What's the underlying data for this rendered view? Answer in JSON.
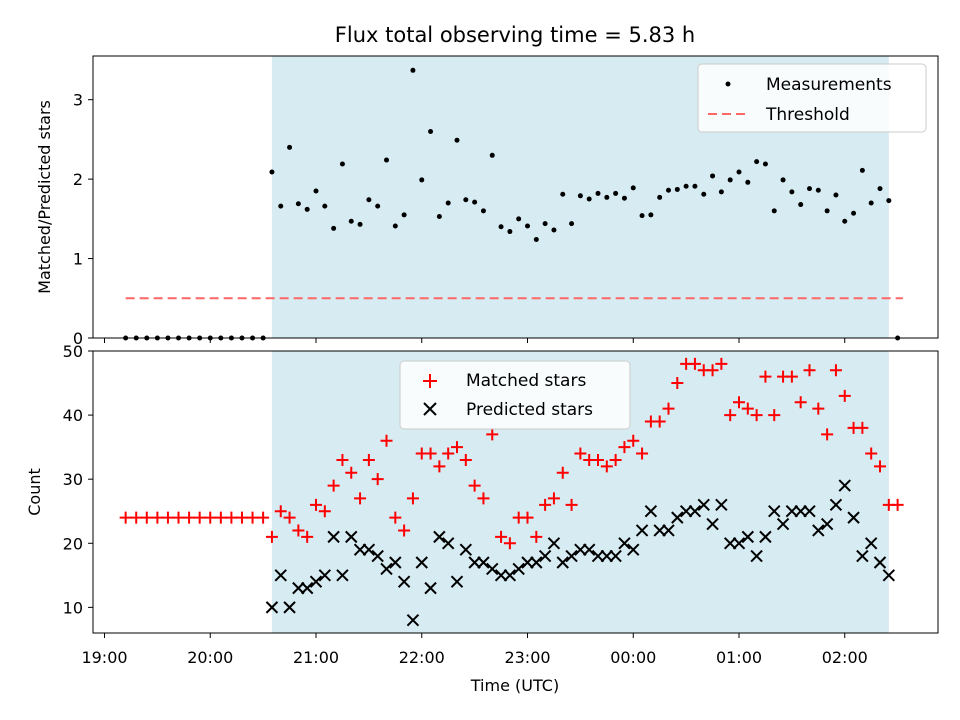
{
  "title": "Flux total observing time = 5.83 h",
  "colors": {
    "shade": "#add8e6",
    "measurement": "#000000",
    "threshold": "#ff6666",
    "matched": "#ff0000",
    "predicted": "#000000"
  },
  "chart_data": [
    {
      "type": "scatter",
      "ylabel": "Matched/Predicted stars",
      "ylim": [
        0,
        3.55
      ],
      "yticks": [
        "0",
        "1",
        "2",
        "3"
      ],
      "shaded_region": [
        "20:35",
        "02:25"
      ],
      "legend": {
        "placement": "top-right",
        "entries": [
          "Measurements",
          "Threshold"
        ]
      },
      "threshold": {
        "name": "Threshold",
        "value": 0.5,
        "x_range": [
          "19:12",
          "02:33"
        ]
      },
      "series": [
        {
          "name": "Measurements",
          "marker": "dot",
          "x": [
            "19:12",
            "19:18",
            "19:24",
            "19:30",
            "19:36",
            "19:42",
            "19:48",
            "19:54",
            "20:00",
            "20:06",
            "20:12",
            "20:18",
            "20:24",
            "20:30",
            "20:35",
            "20:40",
            "20:45",
            "20:50",
            "20:55",
            "21:00",
            "21:05",
            "21:10",
            "21:15",
            "21:20",
            "21:25",
            "21:30",
            "21:35",
            "21:40",
            "21:45",
            "21:50",
            "21:55",
            "22:00",
            "22:05",
            "22:10",
            "22:15",
            "22:20",
            "22:25",
            "22:30",
            "22:35",
            "22:40",
            "22:45",
            "22:50",
            "22:55",
            "23:00",
            "23:05",
            "23:10",
            "23:15",
            "23:20",
            "23:25",
            "23:30",
            "23:35",
            "23:40",
            "23:45",
            "23:50",
            "23:55",
            "00:00",
            "00:05",
            "00:10",
            "00:15",
            "00:20",
            "00:25",
            "00:30",
            "00:35",
            "00:40",
            "00:45",
            "00:50",
            "00:55",
            "01:00",
            "01:05",
            "01:10",
            "01:15",
            "01:20",
            "01:25",
            "01:30",
            "01:35",
            "01:40",
            "01:45",
            "01:50",
            "01:55",
            "02:00",
            "02:05",
            "02:10",
            "02:15",
            "02:20",
            "02:25",
            "02:30"
          ],
          "y": [
            0,
            0,
            0,
            0,
            0,
            0,
            0,
            0,
            0,
            0,
            0,
            0,
            0,
            0,
            2.09,
            1.66,
            2.4,
            1.69,
            1.62,
            1.85,
            1.66,
            1.38,
            2.19,
            1.47,
            1.43,
            1.74,
            1.66,
            2.24,
            1.41,
            1.55,
            3.37,
            1.99,
            2.6,
            1.53,
            1.7,
            2.49,
            1.74,
            1.71,
            1.6,
            2.3,
            1.4,
            1.34,
            1.5,
            1.41,
            1.24,
            1.44,
            1.36,
            1.81,
            1.44,
            1.79,
            1.75,
            1.82,
            1.77,
            1.82,
            1.76,
            1.89,
            1.54,
            1.55,
            1.77,
            1.86,
            1.87,
            1.91,
            1.91,
            1.81,
            2.04,
            1.84,
            1.99,
            2.09,
            1.96,
            2.22,
            2.19,
            1.6,
            1.99,
            1.84,
            1.68,
            1.88,
            1.86,
            1.6,
            1.8,
            1.47,
            1.57,
            2.11,
            1.7,
            1.88,
            1.73,
            0
          ]
        }
      ]
    },
    {
      "type": "scatter",
      "xlabel": "Time (UTC)",
      "ylabel": "Count",
      "ylim": [
        6,
        50
      ],
      "yticks": [
        "10",
        "20",
        "30",
        "40",
        "50"
      ],
      "xticks": [
        "19:00",
        "20:00",
        "21:00",
        "22:00",
        "23:00",
        "00:00",
        "01:00",
        "02:00"
      ],
      "shaded_region": [
        "20:35",
        "02:25"
      ],
      "legend": {
        "placement": "top-center",
        "entries": [
          "Matched stars",
          "Predicted stars"
        ]
      },
      "series": [
        {
          "name": "Matched stars",
          "marker": "plus",
          "x": [
            "19:12",
            "19:18",
            "19:24",
            "19:30",
            "19:36",
            "19:42",
            "19:48",
            "19:54",
            "20:00",
            "20:06",
            "20:12",
            "20:18",
            "20:24",
            "20:30",
            "20:35",
            "20:40",
            "20:45",
            "20:50",
            "20:55",
            "21:00",
            "21:05",
            "21:10",
            "21:15",
            "21:20",
            "21:25",
            "21:30",
            "21:35",
            "21:40",
            "21:45",
            "21:50",
            "21:55",
            "22:00",
            "22:05",
            "22:10",
            "22:15",
            "22:20",
            "22:25",
            "22:30",
            "22:35",
            "22:40",
            "22:45",
            "22:50",
            "22:55",
            "23:00",
            "23:05",
            "23:10",
            "23:15",
            "23:20",
            "23:25",
            "23:30",
            "23:35",
            "23:40",
            "23:45",
            "23:50",
            "23:55",
            "00:00",
            "00:05",
            "00:10",
            "00:15",
            "00:20",
            "00:25",
            "00:30",
            "00:35",
            "00:40",
            "00:45",
            "00:50",
            "00:55",
            "01:00",
            "01:05",
            "01:10",
            "01:15",
            "01:20",
            "01:25",
            "01:30",
            "01:35",
            "01:40",
            "01:45",
            "01:50",
            "01:55",
            "02:00",
            "02:05",
            "02:10",
            "02:15",
            "02:20",
            "02:25",
            "02:30"
          ],
          "y": [
            24,
            24,
            24,
            24,
            24,
            24,
            24,
            24,
            24,
            24,
            24,
            24,
            24,
            24,
            21,
            25,
            24,
            22,
            21,
            26,
            25,
            29,
            33,
            31,
            27,
            33,
            30,
            36,
            24,
            22,
            27,
            34,
            34,
            32,
            34,
            35,
            33,
            29,
            27,
            37,
            21,
            20,
            24,
            24,
            21,
            26,
            27,
            31,
            26,
            34,
            33,
            33,
            32,
            33,
            35,
            36,
            34,
            39,
            39,
            41,
            45,
            48,
            48,
            47,
            47,
            48,
            40,
            42,
            41,
            40,
            46,
            40,
            46,
            46,
            42,
            47,
            41,
            37,
            47,
            43,
            38,
            38,
            34,
            32,
            26,
            26
          ]
        },
        {
          "name": "Predicted stars",
          "marker": "x",
          "x": [
            "20:35",
            "20:40",
            "20:45",
            "20:50",
            "20:55",
            "21:00",
            "21:05",
            "21:10",
            "21:15",
            "21:20",
            "21:25",
            "21:30",
            "21:35",
            "21:40",
            "21:45",
            "21:50",
            "21:55",
            "22:00",
            "22:05",
            "22:10",
            "22:15",
            "22:20",
            "22:25",
            "22:30",
            "22:35",
            "22:40",
            "22:45",
            "22:50",
            "22:55",
            "23:00",
            "23:05",
            "23:10",
            "23:15",
            "23:20",
            "23:25",
            "23:30",
            "23:35",
            "23:40",
            "23:45",
            "23:50",
            "23:55",
            "00:00",
            "00:05",
            "00:10",
            "00:15",
            "00:20",
            "00:25",
            "00:30",
            "00:35",
            "00:40",
            "00:45",
            "00:50",
            "00:55",
            "01:00",
            "01:05",
            "01:10",
            "01:15",
            "01:20",
            "01:25",
            "01:30",
            "01:35",
            "01:40",
            "01:45",
            "01:50",
            "01:55",
            "02:00",
            "02:05",
            "02:10",
            "02:15",
            "02:20",
            "02:25"
          ],
          "y": [
            10,
            15,
            10,
            13,
            13,
            14,
            15,
            21,
            15,
            21,
            19,
            19,
            18,
            16,
            17,
            14,
            8,
            17,
            13,
            21,
            20,
            14,
            19,
            17,
            17,
            16,
            15,
            15,
            16,
            17,
            17,
            18,
            20,
            17,
            18,
            19,
            19,
            18,
            18,
            18,
            20,
            19,
            22,
            25,
            22,
            22,
            24,
            25,
            25,
            26,
            23,
            26,
            20,
            20,
            21,
            18,
            21,
            25,
            23,
            25,
            25,
            25,
            22,
            23,
            26,
            29,
            24,
            18,
            20,
            17,
            15
          ]
        }
      ]
    }
  ]
}
